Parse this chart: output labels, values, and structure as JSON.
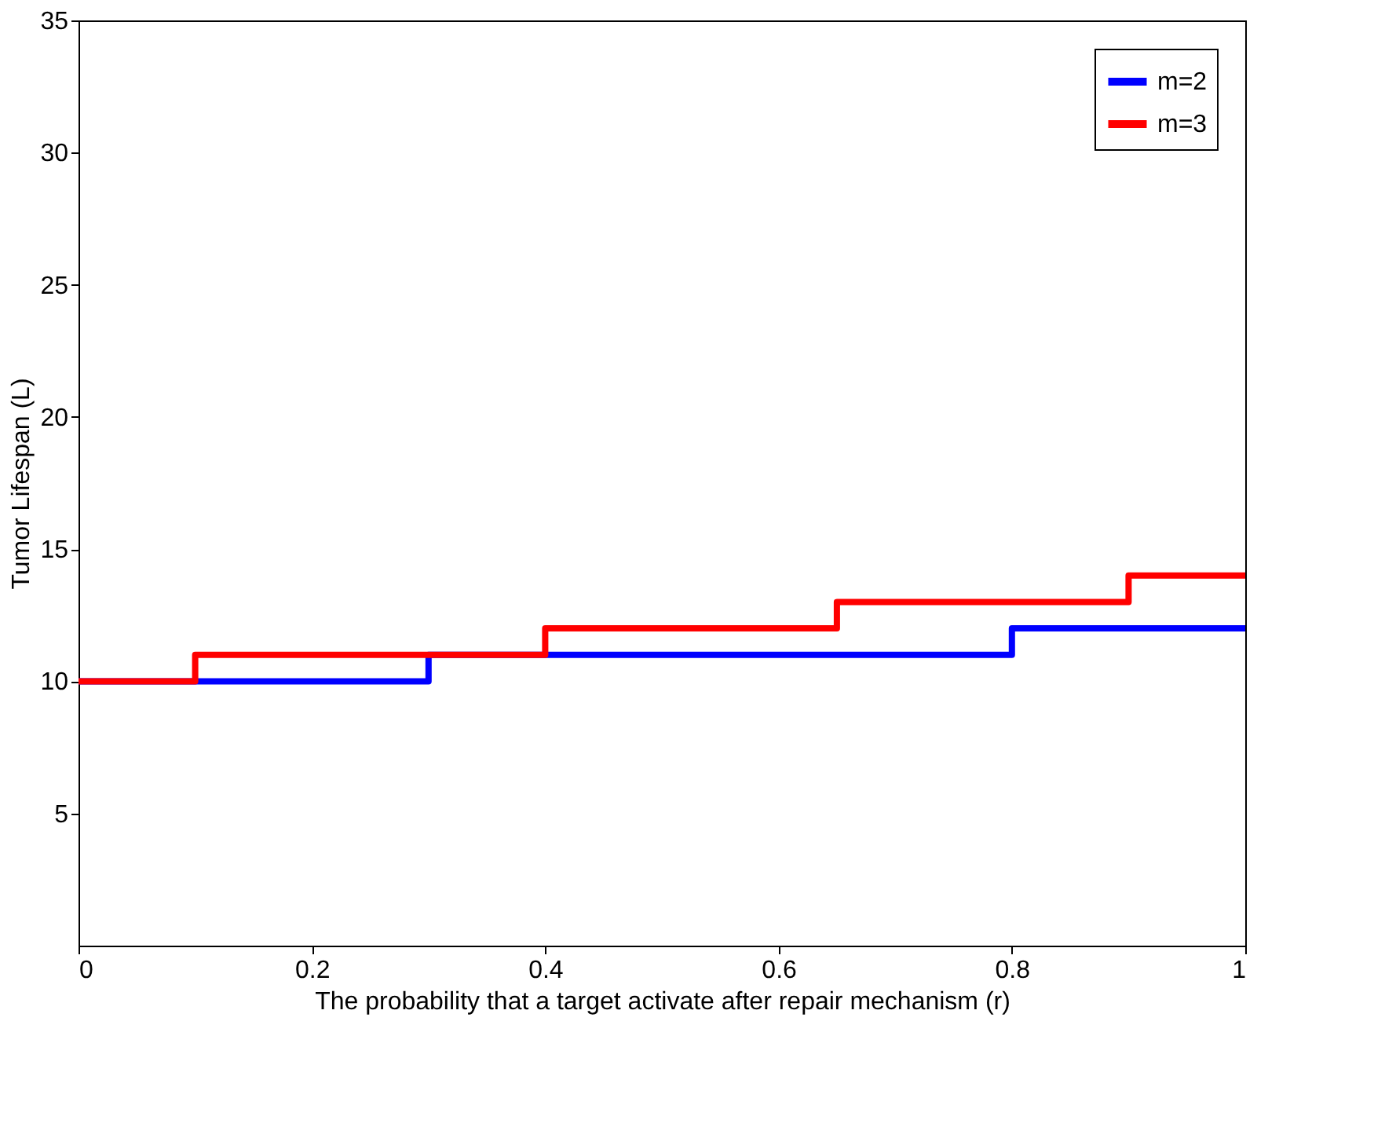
{
  "chart_data": {
    "type": "step",
    "xlabel": "The probability that a target activate after repair mechanism (r)",
    "ylabel": "Tumor Lifespan (L)",
    "series": [
      {
        "name": "m=2",
        "color": "#0000ff",
        "x": [
          0,
          0.3,
          0.8,
          1
        ],
        "values": [
          10,
          11,
          12,
          12
        ]
      },
      {
        "name": "m=3",
        "color": "#ff0000",
        "x": [
          0,
          0.1,
          0.4,
          0.65,
          0.9,
          1
        ],
        "values": [
          10,
          11,
          12,
          13,
          14,
          14
        ]
      }
    ],
    "xlim": [
      0,
      1
    ],
    "xticks": [
      0,
      0.2,
      0.4,
      0.6,
      0.8,
      1
    ],
    "ylim": [
      0,
      35
    ],
    "yticks": [
      5,
      10,
      15,
      20,
      25,
      30,
      35
    ],
    "grid": false,
    "legend": "top right",
    "line_style": "solid"
  }
}
